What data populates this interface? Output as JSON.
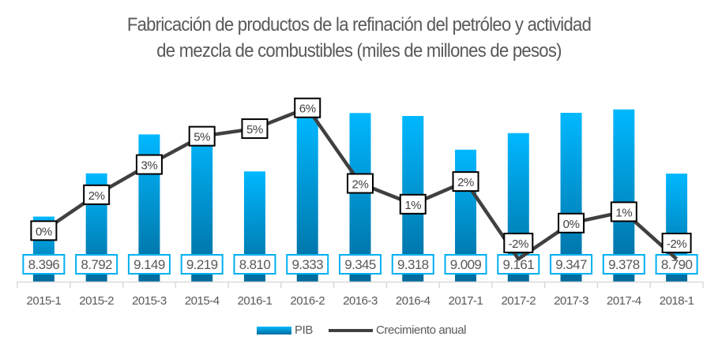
{
  "chart_data": {
    "type": "bar",
    "title": "Fabricación de productos de la refinación del petróleo y actividad de mezcla de combustibles (miles de millones de pesos)",
    "title_lines": [
      "Fabricación de productos de la refinación del petróleo y actividad",
      "de mezcla de combustibles (miles de millones de pesos)"
    ],
    "categories": [
      "2015-1",
      "2015-2",
      "2015-3",
      "2015-4",
      "2016-1",
      "2016-2",
      "2016-3",
      "2016-4",
      "2017-1",
      "2017-2",
      "2017-3",
      "2017-4",
      "2018-1"
    ],
    "series": [
      {
        "name": "PIB",
        "type": "bar",
        "axis": "primary",
        "values": [
          8396,
          8792,
          9149,
          9219,
          8810,
          9333,
          9345,
          9318,
          9009,
          9161,
          9347,
          9378,
          8790
        ],
        "labels": [
          "8.396",
          "8.792",
          "9.149",
          "9.219",
          "8.810",
          "9.333",
          "9.345",
          "9.318",
          "9.009",
          "9.161",
          "9.347",
          "9.378",
          "8.790"
        ],
        "color": "#00b0f0"
      },
      {
        "name": "Crecimiento anual",
        "type": "line",
        "axis": "secondary",
        "values": [
          -0.1,
          1.8,
          3.4,
          4.9,
          5.3,
          6.4,
          2.4,
          1.3,
          2.5,
          -1.6,
          0.3,
          0.9,
          -1.6
        ],
        "labels": [
          "0%",
          "2%",
          "3%",
          "5%",
          "5%",
          "6%",
          "2%",
          "1%",
          "2%",
          "-2%",
          "0%",
          "1%",
          "-2%"
        ],
        "color": "#404040"
      }
    ],
    "ylim": [
      7800,
      9600
    ],
    "y2lim": [
      -2.8,
      7.6
    ],
    "grid": false,
    "legend": "bottom"
  }
}
